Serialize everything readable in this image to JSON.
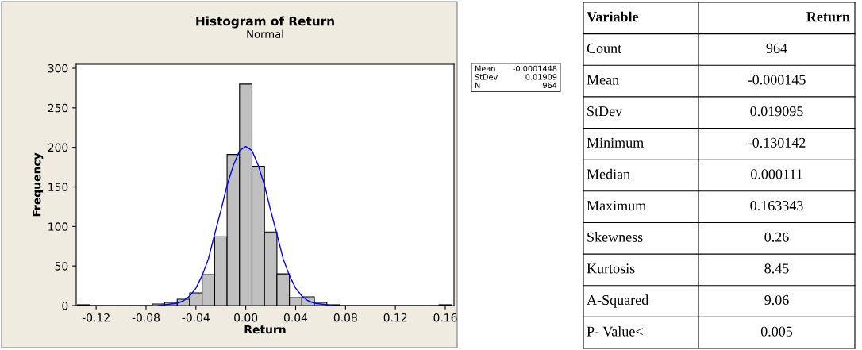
{
  "chart_data": [
    {
      "type": "histogram",
      "title": "Histogram of Return",
      "subtitle": "Normal",
      "xlabel": "Return",
      "ylabel": "Frequency",
      "bins": [
        -0.135,
        -0.125,
        -0.115,
        -0.105,
        -0.095,
        -0.085,
        -0.075,
        -0.065,
        -0.055,
        -0.045,
        -0.035,
        -0.025,
        -0.015,
        -0.005,
        0.005,
        0.015,
        0.025,
        0.035,
        0.045,
        0.055,
        0.065,
        0.075,
        0.085,
        0.095,
        0.105,
        0.115,
        0.125,
        0.135,
        0.145,
        0.155,
        0.165
      ],
      "values": [
        1,
        0,
        0,
        0,
        0,
        0,
        2,
        4,
        8,
        16,
        39,
        87,
        191,
        280,
        176,
        93,
        40,
        10,
        11,
        4,
        1,
        0,
        0,
        0,
        0,
        0,
        0,
        0,
        0,
        1
      ],
      "color": "#c0c0c0",
      "series": [
        {
          "type": "line",
          "color": "#0000ff",
          "x": [
            -0.07,
            -0.06,
            -0.055,
            -0.05,
            -0.045,
            -0.04,
            -0.035,
            -0.03,
            -0.025,
            -0.02,
            -0.015,
            -0.01,
            -0.005,
            0,
            0.005,
            0.01,
            0.015,
            0.02,
            0.025,
            0.03,
            0.035,
            0.04,
            0.045,
            0.05,
            0.055,
            0.06,
            0.07
          ],
          "values": [
            0,
            2,
            3,
            6,
            12,
            22,
            38,
            59,
            90,
            120,
            152,
            177,
            196,
            201,
            196,
            177,
            152,
            120,
            90,
            59,
            38,
            22,
            12,
            6,
            3,
            2,
            0
          ]
        }
      ],
      "xlim": [
        -0.136,
        0.167
      ],
      "ylim": [
        0,
        305
      ],
      "xticks": [
        {
          "value": -0.12,
          "label": "-0.12"
        },
        {
          "value": -0.08,
          "label": "-0.08"
        },
        {
          "value": -0.04,
          "label": "-0.04"
        },
        {
          "value": 0,
          "label": "0.00"
        },
        {
          "value": 0.04,
          "label": "0.04"
        },
        {
          "value": 0.08,
          "label": "0.08"
        },
        {
          "value": 0.12,
          "label": "0.12"
        },
        {
          "value": 0.16,
          "label": "0.16"
        }
      ],
      "yticks": [
        0,
        50,
        100,
        150,
        200,
        250,
        300
      ],
      "grid": false,
      "annotations": [
        "Mean",
        "-0.0001448",
        "StDev",
        "0.01909",
        "N",
        "964"
      ]
    },
    {
      "type": "other",
      "annotations": [
        "Variable",
        "Return",
        "Count",
        "964",
        "Mean",
        "-0.000145",
        "StDev",
        "0.019095",
        "Minimum",
        "-0.130142",
        "Median",
        "0.000111",
        "Maximum",
        "0.163343",
        "Skewness",
        "0.26",
        "Kurtosis",
        "8.45",
        "A-Squared",
        "9.06",
        "P- Value<",
        "0.005"
      ]
    }
  ]
}
